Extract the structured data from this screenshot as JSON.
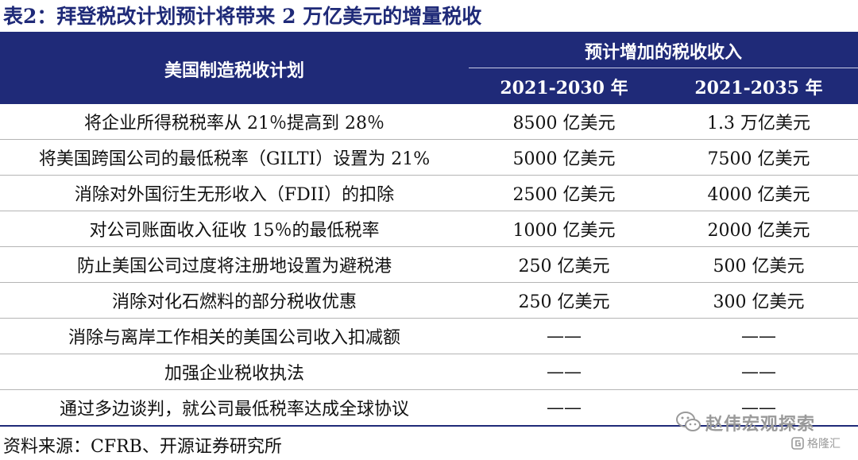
{
  "title": "表2：拜登税改计划预计将带来 2 万亿美元的增量税收",
  "table": {
    "header_plan": "美国制造税收计划",
    "header_period": "预计增加的税收收入",
    "header_years": [
      "2021-2030 年",
      "2021-2035 年"
    ],
    "rows": [
      {
        "plan": "将企业所得税税率从 21％提高到 28％",
        "y2030": "8500 亿美元",
        "y2035": "1.3 万亿美元"
      },
      {
        "plan": "将美国跨国公司的最低税率（GILTI）设置为 21%",
        "y2030": "5000 亿美元",
        "y2035": "7500 亿美元"
      },
      {
        "plan": "消除对外国衍生无形收入（FDII）的扣除",
        "y2030": "2500 亿美元",
        "y2035": "4000 亿美元"
      },
      {
        "plan": "对公司账面收入征收 15％的最低税率",
        "y2030": "1000 亿美元",
        "y2035": "2000 亿美元"
      },
      {
        "plan": "防止美国公司过度将注册地设置为避税港",
        "y2030": "250 亿美元",
        "y2035": "500 亿美元"
      },
      {
        "plan": "消除对化石燃料的部分税收优惠",
        "y2030": "250 亿美元",
        "y2035": "300 亿美元"
      },
      {
        "plan": "消除与离岸工作相关的美国公司收入扣减额",
        "y2030": "——",
        "y2035": "——"
      },
      {
        "plan": "加强企业税收执法",
        "y2030": "——",
        "y2035": "——"
      },
      {
        "plan": "通过多边谈判，就公司最低税率达成全球协议",
        "y2030": "——",
        "y2035": "——"
      }
    ]
  },
  "source": "资料来源：CFRB、开源证券研究所",
  "watermark": {
    "name": "赵伟宏观探索",
    "site": "格隆汇"
  },
  "colors": {
    "header_bg": "#1f2a78",
    "title": "#1f2a78",
    "watermark": "#9a9a9a"
  }
}
